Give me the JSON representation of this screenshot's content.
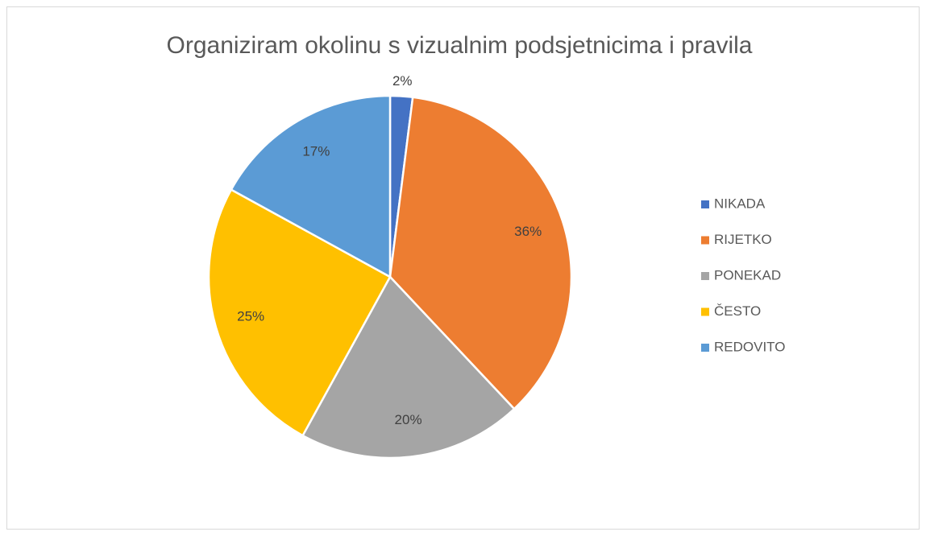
{
  "chart_data": {
    "type": "pie",
    "title": "Organiziram okolinu s vizualnim podsjetnicima i pravila",
    "categories": [
      "NIKADA",
      "RIJETKO",
      "PONEKAD",
      "ČESTO",
      "REDOVITO"
    ],
    "values": [
      2,
      36,
      20,
      25,
      17
    ],
    "value_labels": [
      "2%",
      "36%",
      "20%",
      "25%",
      "17%"
    ],
    "colors": [
      "#4472c4",
      "#ed7d31",
      "#a5a5a5",
      "#ffc000",
      "#5b9bd5"
    ],
    "legend": "right"
  }
}
